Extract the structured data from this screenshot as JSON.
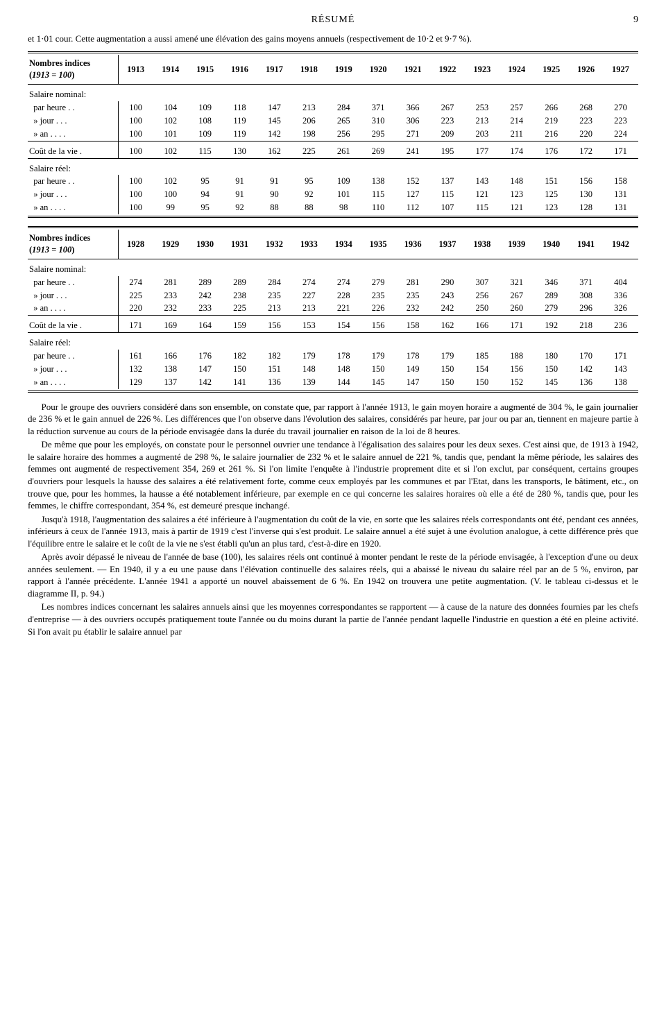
{
  "header": {
    "title": "RÉSUMÉ",
    "page": "9"
  },
  "intro": "et 1·01 cour. Cette augmentation a aussi amené une élévation des gains moyens annuels (respectivement de 10·2 et 9·7 %).",
  "table1": {
    "caption": "Nombres indices (1913 = 100)",
    "years": [
      "1913",
      "1914",
      "1915",
      "1916",
      "1917",
      "1918",
      "1919",
      "1920",
      "1921",
      "1922",
      "1923",
      "1924",
      "1925",
      "1926",
      "1927"
    ],
    "groups": [
      {
        "head": "Salaire nominal:",
        "rows": [
          {
            "label": "par heure",
            "dc": "dots",
            "vals": [
              "100",
              "104",
              "109",
              "118",
              "147",
              "213",
              "284",
              "371",
              "366",
              "267",
              "253",
              "257",
              "266",
              "268",
              "270"
            ]
          },
          {
            "label": "» jour",
            "dc": "dots3",
            "vals": [
              "100",
              "102",
              "108",
              "119",
              "145",
              "206",
              "265",
              "310",
              "306",
              "223",
              "213",
              "214",
              "219",
              "223",
              "223"
            ]
          },
          {
            "label": "» an",
            "dc": "dots4",
            "vals": [
              "100",
              "101",
              "109",
              "119",
              "142",
              "198",
              "256",
              "295",
              "271",
              "209",
              "203",
              "211",
              "216",
              "220",
              "224"
            ]
          }
        ]
      },
      {
        "head": "",
        "rows": [
          {
            "label": "Coût de la vie .",
            "dc": "",
            "vals": [
              "100",
              "102",
              "115",
              "130",
              "162",
              "225",
              "261",
              "269",
              "241",
              "195",
              "177",
              "174",
              "176",
              "172",
              "171"
            ]
          }
        ]
      },
      {
        "head": "Salaire réel:",
        "rows": [
          {
            "label": "par heure",
            "dc": "dots",
            "vals": [
              "100",
              "102",
              "95",
              "91",
              "91",
              "95",
              "109",
              "138",
              "152",
              "137",
              "143",
              "148",
              "151",
              "156",
              "158"
            ]
          },
          {
            "label": "» jour",
            "dc": "dots3",
            "vals": [
              "100",
              "100",
              "94",
              "91",
              "90",
              "92",
              "101",
              "115",
              "127",
              "115",
              "121",
              "123",
              "125",
              "130",
              "131"
            ]
          },
          {
            "label": "» an",
            "dc": "dots4",
            "vals": [
              "100",
              "99",
              "95",
              "92",
              "88",
              "88",
              "98",
              "110",
              "112",
              "107",
              "115",
              "121",
              "123",
              "128",
              "131"
            ]
          }
        ]
      }
    ]
  },
  "table2": {
    "caption": "Nombres indices (1913 = 100)",
    "years": [
      "1928",
      "1929",
      "1930",
      "1931",
      "1932",
      "1933",
      "1934",
      "1935",
      "1936",
      "1937",
      "1938",
      "1939",
      "1940",
      "1941",
      "1942"
    ],
    "groups": [
      {
        "head": "Salaire nominal:",
        "rows": [
          {
            "label": "par heure",
            "dc": "dots",
            "vals": [
              "274",
              "281",
              "289",
              "289",
              "284",
              "274",
              "274",
              "279",
              "281",
              "290",
              "307",
              "321",
              "346",
              "371",
              "404"
            ]
          },
          {
            "label": "» jour",
            "dc": "dots3",
            "vals": [
              "225",
              "233",
              "242",
              "238",
              "235",
              "227",
              "228",
              "235",
              "235",
              "243",
              "256",
              "267",
              "289",
              "308",
              "336"
            ]
          },
          {
            "label": "» an",
            "dc": "dots4",
            "vals": [
              "220",
              "232",
              "233",
              "225",
              "213",
              "213",
              "221",
              "226",
              "232",
              "242",
              "250",
              "260",
              "279",
              "296",
              "326"
            ]
          }
        ]
      },
      {
        "head": "",
        "rows": [
          {
            "label": "Coût de la vie .",
            "dc": "",
            "vals": [
              "171",
              "169",
              "164",
              "159",
              "156",
              "153",
              "154",
              "156",
              "158",
              "162",
              "166",
              "171",
              "192",
              "218",
              "236"
            ]
          }
        ]
      },
      {
        "head": "Salaire réel:",
        "rows": [
          {
            "label": "par heure",
            "dc": "dots",
            "vals": [
              "161",
              "166",
              "176",
              "182",
              "182",
              "179",
              "178",
              "179",
              "178",
              "179",
              "185",
              "188",
              "180",
              "170",
              "171"
            ]
          },
          {
            "label": "» jour",
            "dc": "dots3",
            "vals": [
              "132",
              "138",
              "147",
              "150",
              "151",
              "148",
              "148",
              "150",
              "149",
              "150",
              "154",
              "156",
              "150",
              "142",
              "143"
            ]
          },
          {
            "label": "» an",
            "dc": "dots4",
            "vals": [
              "129",
              "137",
              "142",
              "141",
              "136",
              "139",
              "144",
              "145",
              "147",
              "150",
              "150",
              "152",
              "145",
              "136",
              "138"
            ]
          }
        ]
      }
    ]
  },
  "paragraphs": [
    "Pour le groupe des ouvriers considéré dans son ensemble, on constate que, par rapport à l'année 1913, le gain moyen horaire a augmenté de 304 %, le gain journalier de 236 % et le gain annuel de 226 %. Les différences que l'on observe dans l'évolution des salaires, considérés par heure, par jour ou par an, tiennent en majeure partie à la réduction survenue au cours de la période envisagée dans la durée du travail journalier en raison de la loi de 8 heures.",
    "De même que pour les employés, on constate pour le personnel ouvrier une tendance à l'égalisation des salaires pour les deux sexes. C'est ainsi que, de 1913 à 1942, le salaire horaire des hommes a augmenté de 298 %, le salaire journalier de 232 % et le salaire annuel de 221 %, tandis que, pendant la même période, les salaires des femmes ont augmenté de respectivement 354, 269 et 261 %. Si l'on limite l'enquête à l'industrie proprement dite et si l'on exclut, par conséquent, certains groupes d'ouvriers pour lesquels la hausse des salaires a été relativement forte, comme ceux employés par les communes et par l'Etat, dans les transports, le bâtiment, etc., on trouve que, pour les hommes, la hausse a été notablement inférieure, par exemple en ce qui concerne les salaires horaires où elle a été de 280 %, tandis que, pour les femmes, le chiffre correspondant, 354 %, est demeuré presque inchangé.",
    "Jusqu'à 1918, l'augmentation des salaires a été inférieure à l'augmentation du coût de la vie, en sorte que les salaires réels correspondants ont été, pendant ces années, inférieurs à ceux de l'année 1913, mais à partir de 1919 c'est l'inverse qui s'est produit. Le salaire annuel a été sujet à une évolution analogue, à cette différence près que l'équilibre entre le salaire et le coût de la vie ne s'est établi qu'un an plus tard, c'est-à-dire en 1920.",
    "Après avoir dépassé le niveau de l'année de base (100), les salaires réels ont continué à monter pendant le reste de la période envisagée, à l'exception d'une ou deux années seulement. — En 1940, il y a eu une pause dans l'élévation continuelle des salaires réels, qui a abaissé le niveau du salaire réel par an de 5 %, environ, par rapport à l'année précédente. L'année 1941 a apporté un nouvel abaissement de 6 %. En 1942 on trouvera une petite augmentation. (V. le tableau ci-dessus et le diagramme II, p. 94.)",
    "Les nombres indices concernant les salaires annuels ainsi que les moyennes correspondantes se rapportent — à cause de la nature des données fournies par les chefs d'entreprise — à des ouvriers occupés pratiquement toute l'année ou du moins durant la partie de l'année pendant laquelle l'industrie en question a été en pleine activité. Si l'on avait pu établir le salaire annuel par"
  ]
}
